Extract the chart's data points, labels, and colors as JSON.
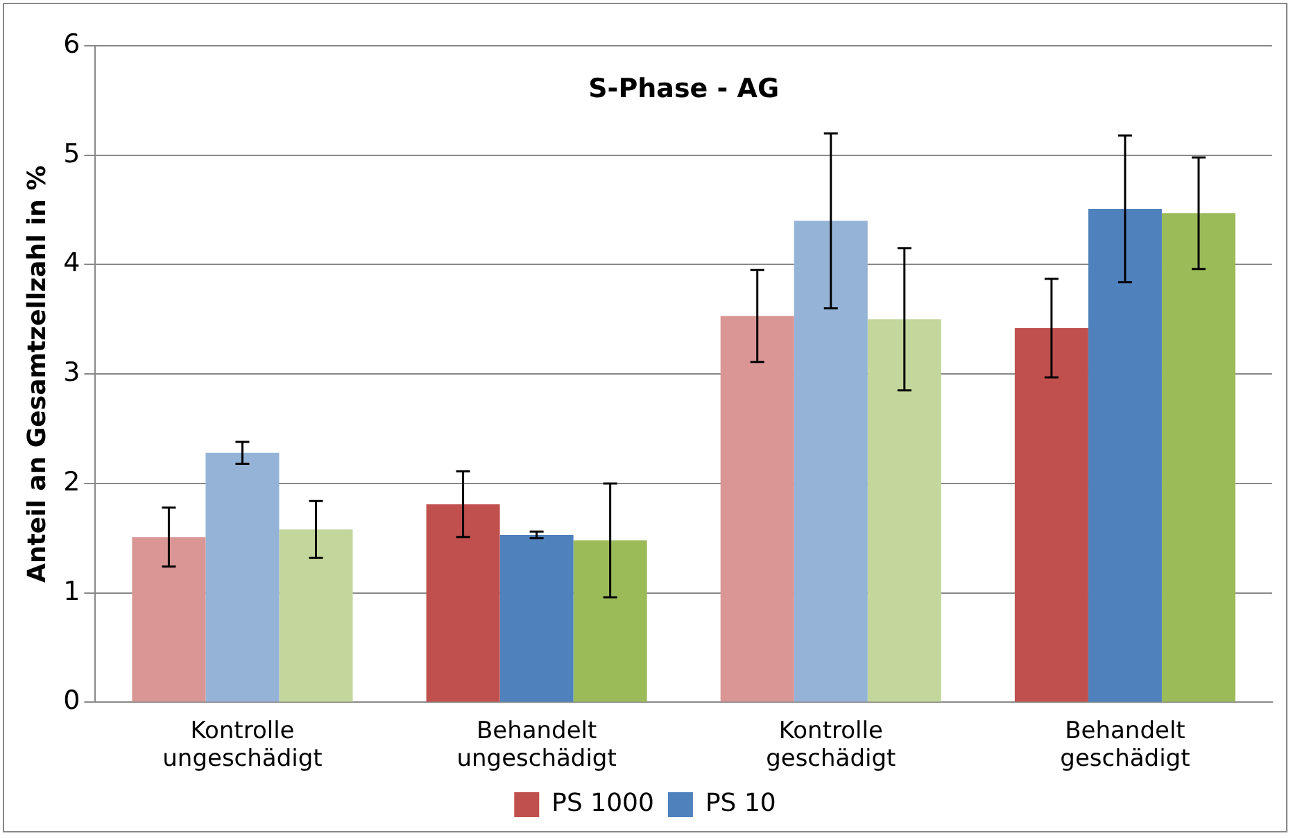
{
  "chart_data": {
    "type": "bar",
    "title": "S-Phase - AG",
    "ylabel": "Anteil an Gesamtzellzahl in %",
    "categories": [
      "Kontrolle ungeschädigt",
      "Behandelt ungeschädigt",
      "Kontrolle geschädigt",
      "Behandelt geschädigt"
    ],
    "series": [
      {
        "name": "PS 1000",
        "color": "#c0504d",
        "colors": [
          "#d99694",
          "#c0504d",
          "#d99694",
          "#c0504d"
        ],
        "values": [
          1.51,
          1.81,
          3.53,
          3.42
        ],
        "errors": [
          0.27,
          0.3,
          0.42,
          0.45
        ]
      },
      {
        "name": "PS 10",
        "color": "#4f81bd",
        "colors": [
          "#95b3d7",
          "#4f81bd",
          "#95b3d7",
          "#4f81bd"
        ],
        "values": [
          2.28,
          1.53,
          4.4,
          4.51
        ],
        "errors": [
          0.1,
          0.03,
          0.8,
          0.67
        ]
      },
      {
        "color": "#9bbb59",
        "colors": [
          "#c3d69b",
          "#9bbb59",
          "#c3d69b",
          "#9bbb59"
        ],
        "values": [
          1.58,
          1.48,
          3.5,
          4.47
        ],
        "errors": [
          0.26,
          0.52,
          0.65,
          0.51
        ]
      }
    ],
    "ylim": [
      0,
      6
    ],
    "yticks": [
      0,
      1,
      2,
      3,
      4,
      5,
      6
    ],
    "grid": "y",
    "legend": "bottom"
  }
}
